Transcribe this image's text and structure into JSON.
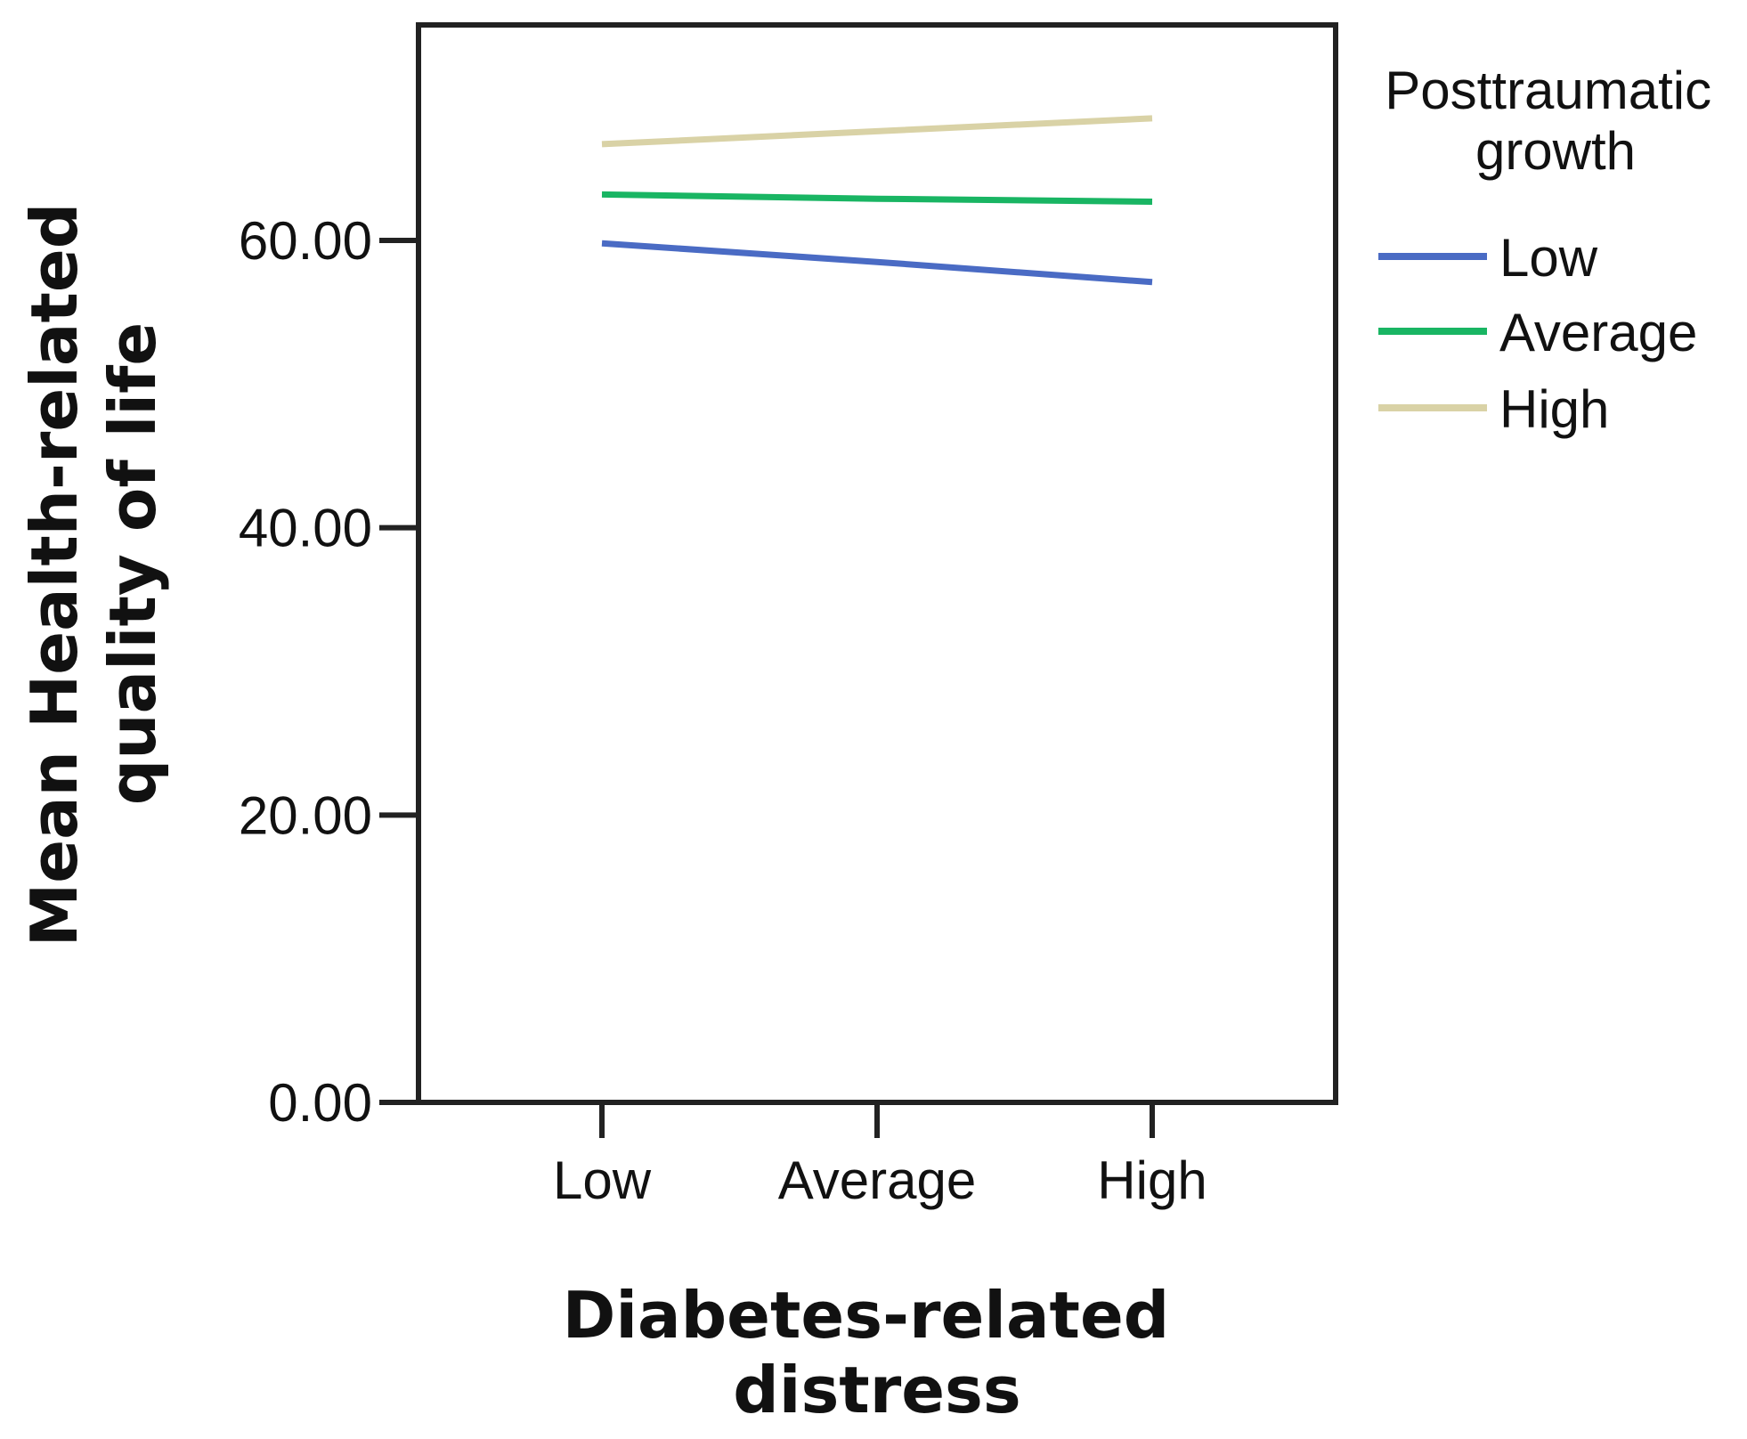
{
  "chart_data": {
    "type": "line",
    "x_title": [
      "Diabetes-related",
      "distress"
    ],
    "y_title": [
      "Mean Health-related",
      "quality of life"
    ],
    "categories": [
      "Low",
      "Average",
      "High"
    ],
    "ylim": [
      0,
      75
    ],
    "yticks": [
      0,
      20,
      40,
      60
    ],
    "ytick_labels": [
      "0.00",
      "20.00",
      "40.00",
      "60.00"
    ],
    "legend_title": [
      "Posttraumatic",
      "growth"
    ],
    "legend_position": "right",
    "grid": false,
    "series": [
      {
        "name": "Low",
        "color": "#4a6bc4",
        "values": [
          59.8,
          58.5,
          57.1
        ]
      },
      {
        "name": "Average",
        "color": "#19b563",
        "values": [
          63.2,
          62.9,
          62.7
        ]
      },
      {
        "name": "High",
        "color": "#d9d2a6",
        "values": [
          66.7,
          67.6,
          68.5
        ]
      }
    ]
  }
}
